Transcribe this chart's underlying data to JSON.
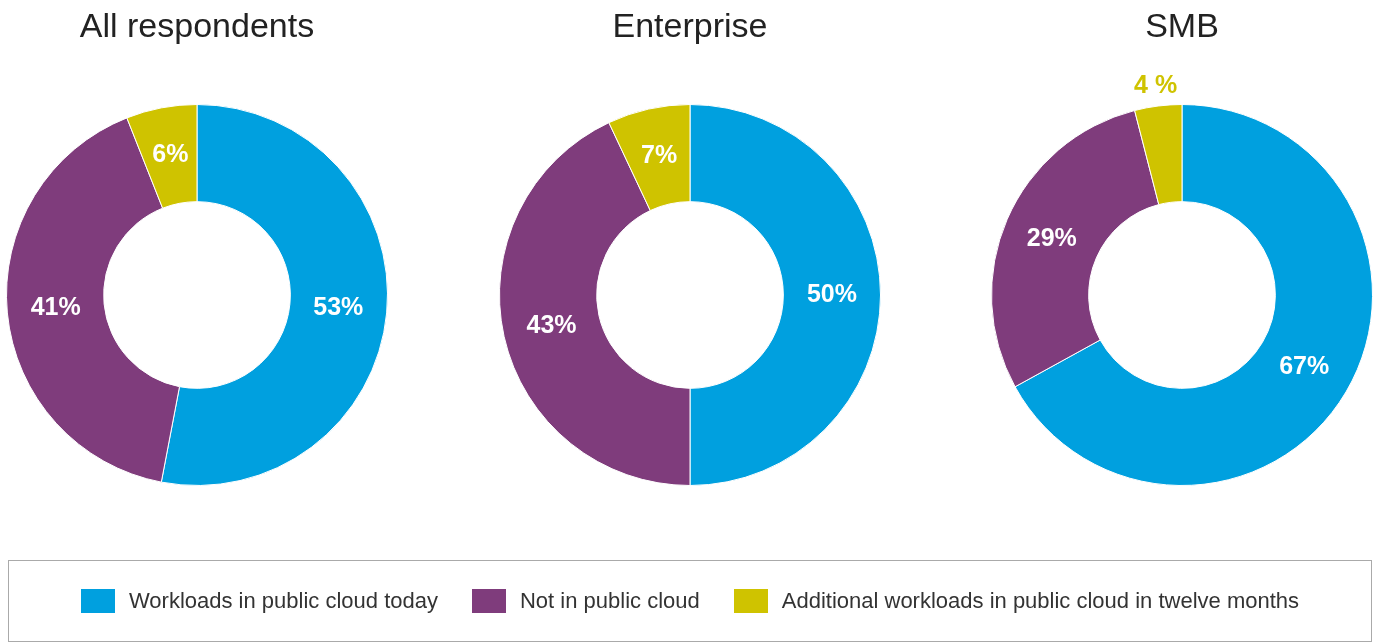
{
  "chart_data": [
    {
      "type": "donut",
      "title": "All respondents",
      "categories": [
        "Workloads in public cloud today",
        "Not in public cloud",
        "Additional workloads in public cloud in twelve months"
      ],
      "values": [
        53,
        41,
        6
      ],
      "colors": [
        "#00a0df",
        "#7f3c7c",
        "#cfc300"
      ],
      "value_labels": [
        "53%",
        "41%",
        "6%"
      ],
      "legend": "bottom"
    },
    {
      "type": "donut",
      "title": "Enterprise",
      "categories": [
        null,
        null,
        null
      ],
      "values": [
        50,
        43,
        7
      ],
      "colors": [
        "#00a0df",
        "#7f3c7c",
        "#cfc300"
      ],
      "value_labels": [
        "50%",
        "43%",
        "7%"
      ]
    },
    {
      "type": "donut",
      "title": "SMB",
      "categories": [
        null,
        null,
        null
      ],
      "values": [
        67,
        29,
        4
      ],
      "colors": [
        "#00a0df",
        "#7f3c7c",
        "#cfc300"
      ],
      "value_labels": [
        "67%",
        "29%",
        "4 %"
      ]
    }
  ]
}
